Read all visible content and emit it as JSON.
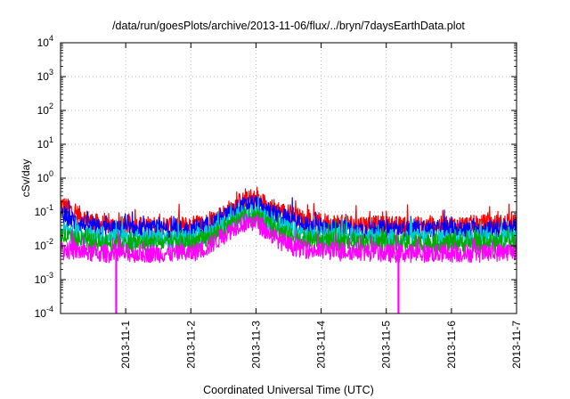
{
  "chart_data": {
    "type": "line",
    "title": "/data/run/goesPlots/archive/2013-11-06/flux/../bryn/7daysEarthData.plot",
    "xlabel": "Coordinated Universal Time (UTC)",
    "ylabel": "cSv/day",
    "yscale": "log",
    "ylim": [
      0.0001,
      10000
    ],
    "xlim": [
      "2013-10-31T00:00",
      "2013-11-07T00:00"
    ],
    "grid": true,
    "x_ticks": [
      "2013-11-1",
      "2013-11-2",
      "2013-11-3",
      "2013-11-4",
      "2013-11-5",
      "2013-11-6",
      "2013-11-7"
    ],
    "y_ticks": [
      {
        "value": 0.0001,
        "base": "10",
        "exp": "-4"
      },
      {
        "value": 0.001,
        "base": "10",
        "exp": "-3"
      },
      {
        "value": 0.01,
        "base": "10",
        "exp": "-2"
      },
      {
        "value": 0.1,
        "base": "10",
        "exp": "-1"
      },
      {
        "value": 1,
        "base": "10",
        "exp": "0"
      },
      {
        "value": 10,
        "base": "10",
        "exp": "1"
      },
      {
        "value": 100,
        "base": "10",
        "exp": "2"
      },
      {
        "value": 1000,
        "base": "10",
        "exp": "3"
      },
      {
        "value": 10000,
        "base": "10",
        "exp": "4"
      }
    ],
    "series": [
      {
        "color": "#ff0000",
        "x": [
          "2013-10-31T00:00",
          "2013-10-31T06:00",
          "2013-10-31T12:00",
          "2013-10-31T18:00",
          "2013-11-01T00:00",
          "2013-11-01T12:00",
          "2013-11-02T00:00",
          "2013-11-02T06:00",
          "2013-11-02T12:00",
          "2013-11-02T18:00",
          "2013-11-03T00:00",
          "2013-11-03T06:00",
          "2013-11-03T12:00",
          "2013-11-03T18:00",
          "2013-11-04T00:00",
          "2013-11-04T12:00",
          "2013-11-05T00:00",
          "2013-11-05T12:00",
          "2013-11-06T00:00",
          "2013-11-06T12:00",
          "2013-11-07T00:00"
        ],
        "values": [
          0.18,
          0.09,
          0.05,
          0.04,
          0.04,
          0.04,
          0.04,
          0.05,
          0.09,
          0.2,
          0.25,
          0.14,
          0.09,
          0.06,
          0.05,
          0.045,
          0.04,
          0.04,
          0.04,
          0.045,
          0.045
        ]
      },
      {
        "color": "#0000ff",
        "x": [
          "2013-10-31T00:00",
          "2013-10-31T06:00",
          "2013-10-31T12:00",
          "2013-10-31T18:00",
          "2013-11-01T00:00",
          "2013-11-01T12:00",
          "2013-11-02T00:00",
          "2013-11-02T06:00",
          "2013-11-02T12:00",
          "2013-11-02T18:00",
          "2013-11-03T00:00",
          "2013-11-03T06:00",
          "2013-11-03T12:00",
          "2013-11-03T18:00",
          "2013-11-04T00:00",
          "2013-11-04T12:00",
          "2013-11-05T00:00",
          "2013-11-05T12:00",
          "2013-11-06T00:00",
          "2013-11-06T12:00",
          "2013-11-07T00:00"
        ],
        "values": [
          0.08,
          0.05,
          0.035,
          0.03,
          0.03,
          0.03,
          0.03,
          0.04,
          0.07,
          0.14,
          0.17,
          0.09,
          0.06,
          0.04,
          0.035,
          0.03,
          0.03,
          0.03,
          0.03,
          0.03,
          0.035
        ]
      },
      {
        "color": "#00cccc",
        "x": [
          "2013-10-31T00:00",
          "2013-10-31T06:00",
          "2013-10-31T12:00",
          "2013-10-31T18:00",
          "2013-11-01T00:00",
          "2013-11-01T12:00",
          "2013-11-02T00:00",
          "2013-11-02T06:00",
          "2013-11-02T12:00",
          "2013-11-02T18:00",
          "2013-11-03T00:00",
          "2013-11-03T06:00",
          "2013-11-03T12:00",
          "2013-11-03T18:00",
          "2013-11-04T00:00",
          "2013-11-04T12:00",
          "2013-11-05T00:00",
          "2013-11-05T12:00",
          "2013-11-06T00:00",
          "2013-11-06T12:00",
          "2013-11-07T00:00"
        ],
        "values": [
          0.03,
          0.022,
          0.018,
          0.017,
          0.017,
          0.017,
          0.017,
          0.022,
          0.04,
          0.08,
          0.09,
          0.05,
          0.03,
          0.022,
          0.02,
          0.018,
          0.017,
          0.017,
          0.017,
          0.017,
          0.02
        ]
      },
      {
        "color": "#00aa00",
        "x": [
          "2013-10-31T00:00",
          "2013-10-31T06:00",
          "2013-10-31T12:00",
          "2013-10-31T18:00",
          "2013-11-01T00:00",
          "2013-11-01T12:00",
          "2013-11-02T00:00",
          "2013-11-02T06:00",
          "2013-11-02T12:00",
          "2013-11-02T18:00",
          "2013-11-03T00:00",
          "2013-11-03T06:00",
          "2013-11-03T12:00",
          "2013-11-03T18:00",
          "2013-11-04T00:00",
          "2013-11-04T12:00",
          "2013-11-05T00:00",
          "2013-11-05T12:00",
          "2013-11-06T00:00",
          "2013-11-06T12:00",
          "2013-11-07T00:00"
        ],
        "values": [
          0.02,
          0.015,
          0.013,
          0.012,
          0.012,
          0.012,
          0.012,
          0.016,
          0.03,
          0.06,
          0.07,
          0.035,
          0.02,
          0.015,
          0.014,
          0.013,
          0.012,
          0.012,
          0.012,
          0.012,
          0.014
        ]
      },
      {
        "color": "#ff00ff",
        "x": [
          "2013-10-31T00:00",
          "2013-10-31T06:00",
          "2013-10-31T12:00",
          "2013-10-31T18:00",
          "2013-11-01T00:00",
          "2013-11-01T12:00",
          "2013-11-02T00:00",
          "2013-11-02T06:00",
          "2013-11-02T12:00",
          "2013-11-02T18:00",
          "2013-11-03T00:00",
          "2013-11-03T06:00",
          "2013-11-03T12:00",
          "2013-11-03T18:00",
          "2013-11-04T00:00",
          "2013-11-04T12:00",
          "2013-11-05T00:00",
          "2013-11-05T12:00",
          "2013-11-06T00:00",
          "2013-11-06T12:00",
          "2013-11-07T00:00"
        ],
        "values": [
          0.008,
          0.007,
          0.006,
          0.006,
          0.006,
          0.006,
          0.006,
          0.009,
          0.02,
          0.045,
          0.05,
          0.02,
          0.01,
          0.008,
          0.007,
          0.007,
          0.006,
          0.006,
          0.006,
          0.006,
          0.007
        ]
      }
    ],
    "annotations": [
      {
        "type": "dropout",
        "color": "#ff00ff",
        "x": "2013-10-31T20:30",
        "min_value": 0.0001
      },
      {
        "type": "dropout",
        "color": "#ff00ff",
        "x": "2013-11-05T04:30",
        "min_value": 0.0001
      }
    ]
  }
}
